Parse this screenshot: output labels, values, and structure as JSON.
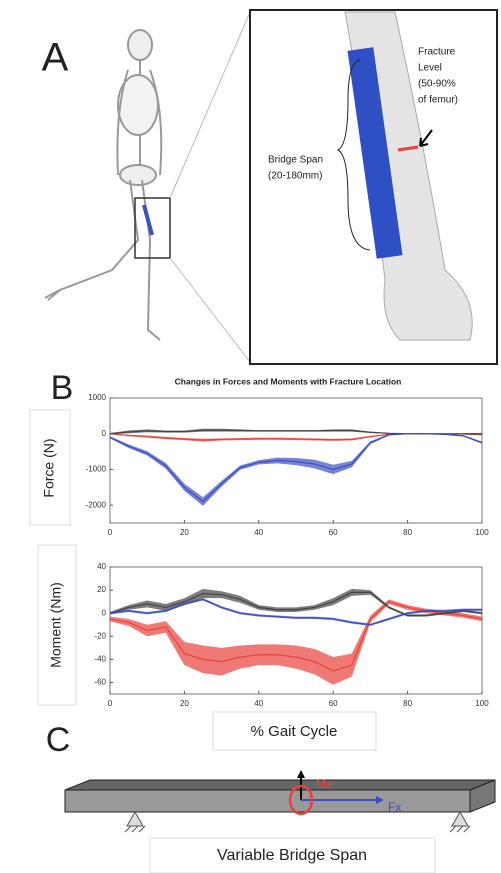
{
  "panel_labels": [
    "A",
    "B",
    "C"
  ],
  "annotations": {
    "fracture_level": [
      "Fracture",
      "Level",
      "(50-90%",
      "of femur)"
    ],
    "bridge_span": [
      "Bridge Span",
      "(20-180mm)"
    ],
    "moment": "Mx",
    "force": "Fx",
    "span": "Variable Bridge Span"
  },
  "chart_data": [
    {
      "type": "line",
      "title": "Changes in Forces and Moments with Fracture Location",
      "ylabel": "Force (N)",
      "x": [
        0,
        5,
        10,
        15,
        20,
        25,
        30,
        35,
        40,
        45,
        50,
        55,
        60,
        65,
        70,
        75,
        80,
        85,
        90,
        95,
        100
      ],
      "xlim": [
        0,
        100
      ],
      "xticks": [
        0,
        20,
        40,
        60,
        80,
        100
      ],
      "ylim": [
        -2500,
        1000
      ],
      "yticks": [
        1000,
        0,
        -1000,
        -2000
      ],
      "series": [
        {
          "color": "#e8413a",
          "values": [
            0,
            -50,
            -80,
            -120,
            -150,
            -180,
            -160,
            -150,
            -140,
            -140,
            -150,
            -160,
            -170,
            -160,
            -80,
            -20,
            0,
            0,
            0,
            -10,
            -30
          ],
          "error": [
            10,
            20,
            30,
            30,
            30,
            40,
            30,
            30,
            30,
            30,
            30,
            30,
            30,
            30,
            20,
            10,
            10,
            10,
            10,
            10,
            10
          ]
        },
        {
          "color": "#444444",
          "values": [
            0,
            50,
            80,
            60,
            60,
            100,
            100,
            90,
            80,
            80,
            80,
            80,
            90,
            90,
            40,
            10,
            0,
            0,
            -10,
            0,
            0
          ],
          "error": [
            20,
            40,
            40,
            30,
            30,
            40,
            40,
            30,
            20,
            20,
            20,
            20,
            30,
            30,
            20,
            10,
            10,
            10,
            10,
            10,
            10
          ]
        },
        {
          "color": "#3a4fc0",
          "values": [
            -100,
            -350,
            -550,
            -900,
            -1500,
            -1900,
            -1400,
            -950,
            -800,
            -750,
            -780,
            -850,
            -1000,
            -850,
            -250,
            -30,
            0,
            0,
            -20,
            -60,
            -250
          ],
          "error": [
            30,
            50,
            60,
            80,
            100,
            120,
            80,
            60,
            60,
            80,
            100,
            120,
            130,
            90,
            40,
            20,
            10,
            10,
            10,
            20,
            30
          ]
        }
      ]
    },
    {
      "type": "line",
      "ylabel": "Moment (Nm)",
      "xlabel": "% Gait Cycle",
      "x": [
        0,
        5,
        10,
        15,
        20,
        25,
        30,
        35,
        40,
        45,
        50,
        55,
        60,
        65,
        70,
        75,
        80,
        85,
        90,
        95,
        100
      ],
      "xlim": [
        0,
        100
      ],
      "xticks": [
        0,
        20,
        40,
        60,
        80,
        100
      ],
      "ylim": [
        -70,
        40
      ],
      "yticks": [
        40,
        20,
        0,
        -20,
        -40,
        -60
      ],
      "series": [
        {
          "color": "#e8413a",
          "values": [
            -5,
            -8,
            -15,
            -12,
            -35,
            -40,
            -42,
            -38,
            -36,
            -36,
            -38,
            -42,
            -50,
            -45,
            -5,
            10,
            5,
            2,
            0,
            -2,
            -5
          ],
          "error": [
            2,
            3,
            5,
            5,
            10,
            12,
            12,
            10,
            9,
            9,
            10,
            11,
            12,
            10,
            3,
            2,
            2,
            2,
            2,
            2,
            2
          ]
        },
        {
          "color": "#444444",
          "values": [
            0,
            5,
            8,
            5,
            10,
            17,
            16,
            12,
            5,
            3,
            3,
            5,
            10,
            18,
            18,
            5,
            -2,
            -2,
            0,
            2,
            0
          ],
          "error": [
            1,
            2,
            3,
            3,
            3,
            4,
            3,
            3,
            2,
            2,
            2,
            2,
            3,
            3,
            2,
            1,
            1,
            1,
            1,
            1,
            1
          ]
        },
        {
          "color": "#3a4fc0",
          "values": [
            0,
            2,
            0,
            2,
            8,
            12,
            5,
            0,
            -2,
            -3,
            -4,
            -4,
            -5,
            -8,
            -10,
            -5,
            0,
            2,
            2,
            3,
            3
          ],
          "error": [
            1,
            1,
            1,
            1,
            1,
            1,
            1,
            1,
            1,
            1,
            1,
            1,
            1,
            1,
            1,
            1,
            1,
            1,
            1,
            1,
            1
          ]
        }
      ]
    }
  ]
}
